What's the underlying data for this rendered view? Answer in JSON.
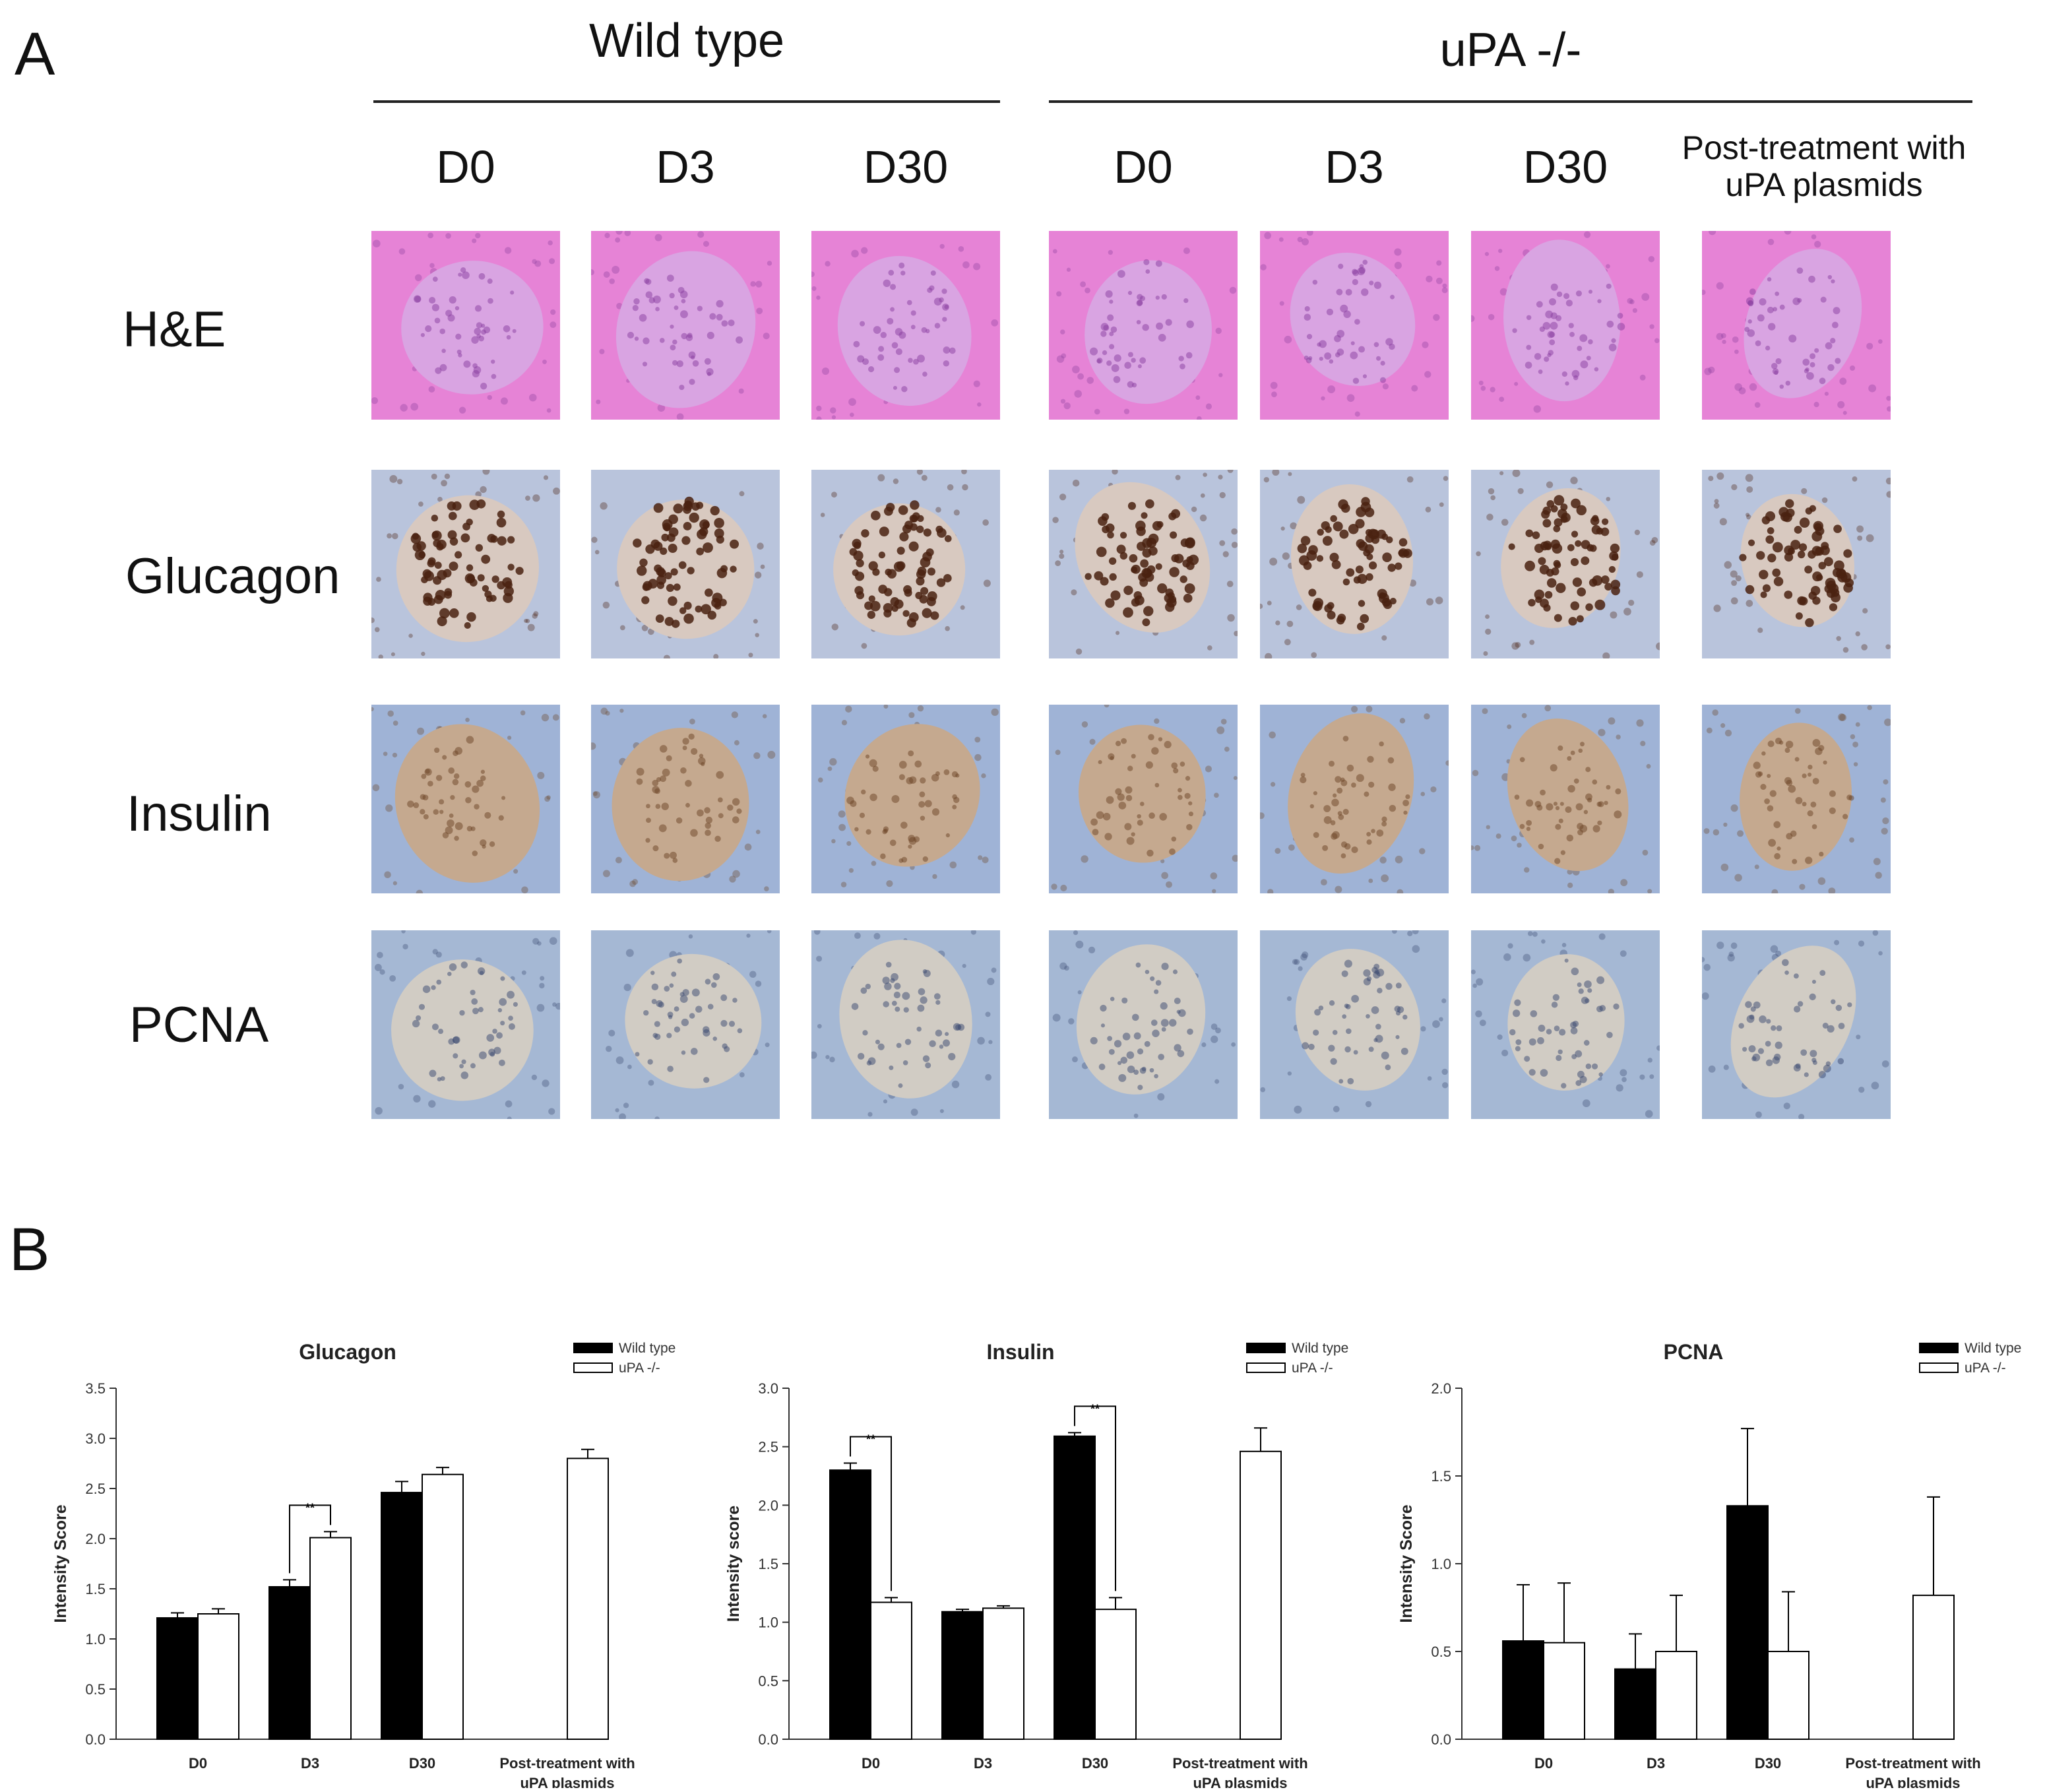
{
  "panel_a": {
    "letter": "A",
    "groups": [
      {
        "title": "Wild type",
        "columns": [
          "D0",
          "D3",
          "D30"
        ]
      },
      {
        "title": "uPA -/-",
        "columns": [
          "D0",
          "D3",
          "D30",
          "Post-treatment with uPA plasmids"
        ]
      }
    ],
    "rows": [
      "H&E",
      "Glucagon",
      "Insulin",
      "PCNA"
    ],
    "stain_colors": {
      "H&E": {
        "bg": "#e683d6",
        "islet": "#d9a4e2",
        "nucleus": "#8a3e9f"
      },
      "Glucagon": {
        "bg": "#b9c4dc",
        "islet": "#d8c9c0",
        "nucleus": "#4a2210"
      },
      "Insulin": {
        "bg": "#9fb3d6",
        "islet": "#c5a98f",
        "nucleus": "#6b4426"
      },
      "PCNA": {
        "bg": "#a5b8d4",
        "islet": "#d1ccc4",
        "nucleus": "#3a4870"
      }
    }
  },
  "panel_b": {
    "letter": "B",
    "legend": [
      "Wild type",
      "uPA -/-"
    ],
    "categories": [
      "D0",
      "D3",
      "D30",
      "Post-treatment with\nuPA plasmids"
    ]
  },
  "chart_data": [
    {
      "type": "bar",
      "title": "Glucagon",
      "ylabel": "Intensity Score",
      "ylim": [
        0,
        3.5
      ],
      "yticks": [
        "0.0",
        "0.5",
        "1.0",
        "1.5",
        "2.0",
        "2.5",
        "3.0",
        "3.5"
      ],
      "categories": [
        "D0",
        "D3",
        "D30",
        "Post-treatment with\nuPA plasmids"
      ],
      "series": [
        {
          "name": "Wild type",
          "color": "#000000",
          "values": [
            1.21,
            1.52,
            2.46,
            null
          ],
          "errors": [
            0.05,
            0.07,
            0.11,
            null
          ]
        },
        {
          "name": "uPA -/-",
          "color": "#ffffff",
          "values": [
            1.25,
            2.01,
            2.64,
            2.8
          ],
          "errors": [
            0.05,
            0.06,
            0.07,
            0.09
          ]
        }
      ],
      "significance": [
        {
          "category": 1,
          "label": "**"
        }
      ]
    },
    {
      "type": "bar",
      "title": "Insulin",
      "ylabel": "Intensity score",
      "ylim": [
        0,
        3.0
      ],
      "yticks": [
        "0.0",
        "0.5",
        "1.0",
        "1.5",
        "2.0",
        "2.5",
        "3.0"
      ],
      "categories": [
        "D0",
        "D3",
        "D30",
        "Post-treatment with\nuPA plasmids"
      ],
      "series": [
        {
          "name": "Wild type",
          "color": "#000000",
          "values": [
            2.3,
            1.09,
            2.59,
            null
          ],
          "errors": [
            0.06,
            0.02,
            0.03,
            null
          ]
        },
        {
          "name": "uPA -/-",
          "color": "#ffffff",
          "values": [
            1.17,
            1.12,
            1.11,
            2.46
          ],
          "errors": [
            0.04,
            0.02,
            0.1,
            0.2
          ]
        }
      ],
      "significance": [
        {
          "category": 0,
          "label": "**"
        },
        {
          "category": 2,
          "label": "**"
        }
      ]
    },
    {
      "type": "bar",
      "title": "PCNA",
      "ylabel": "Intensity Score",
      "ylim": [
        0,
        2.0
      ],
      "yticks": [
        "0.0",
        "0.5",
        "1.0",
        "1.5",
        "2.0"
      ],
      "categories": [
        "D0",
        "D3",
        "D30",
        "Post-treatment with\nuPA plasmids"
      ],
      "series": [
        {
          "name": "Wild type",
          "color": "#000000",
          "values": [
            0.56,
            0.4,
            1.33,
            null
          ],
          "errors": [
            0.32,
            0.2,
            0.44,
            null
          ]
        },
        {
          "name": "uPA -/-",
          "color": "#ffffff",
          "values": [
            0.55,
            0.5,
            0.5,
            0.82
          ],
          "errors": [
            0.34,
            0.32,
            0.34,
            0.56
          ]
        }
      ],
      "significance": []
    }
  ]
}
